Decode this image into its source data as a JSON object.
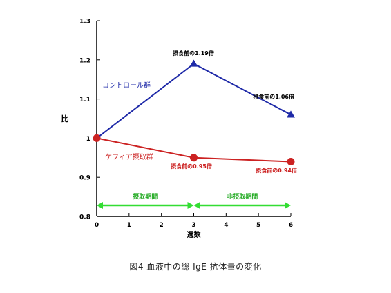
{
  "figure": {
    "caption": "図4  血液中の総 IgE 抗体量の変化"
  },
  "chart_data": {
    "type": "line",
    "title": "",
    "xlabel": "週数",
    "ylabel": "比",
    "xlim": [
      0,
      6
    ],
    "ylim": [
      0.8,
      1.3
    ],
    "x_ticks": [
      0,
      1,
      2,
      3,
      4,
      5,
      6
    ],
    "y_ticks": [
      0.8,
      0.9,
      1,
      1.1,
      1.2,
      1.3
    ],
    "y_tick_labels": [
      "0.8",
      "0.9",
      "1",
      "1.1",
      "1.2",
      "1.3"
    ],
    "grid": false,
    "series": [
      {
        "name": "コントロール群",
        "color": "#1f2aa8",
        "marker": "triangle",
        "x": [
          0,
          3,
          6
        ],
        "y": [
          1.0,
          1.19,
          1.06
        ],
        "point_labels": [
          "",
          "摂食前の1.19倍",
          "摂食前の1.06倍"
        ]
      },
      {
        "name": "ケフィア摂取群",
        "color": "#cc2222",
        "marker": "circle",
        "x": [
          0,
          3,
          6
        ],
        "y": [
          1.0,
          0.95,
          0.94
        ],
        "point_labels": [
          "",
          "摂食前の0.95倍",
          "摂食前の0.94倍"
        ]
      }
    ],
    "periods": [
      {
        "label": "摂取期間",
        "x_start": 0,
        "x_end": 3
      },
      {
        "label": "非摂取期間",
        "x_start": 3,
        "x_end": 6
      }
    ],
    "period_color": "#33dd33"
  }
}
